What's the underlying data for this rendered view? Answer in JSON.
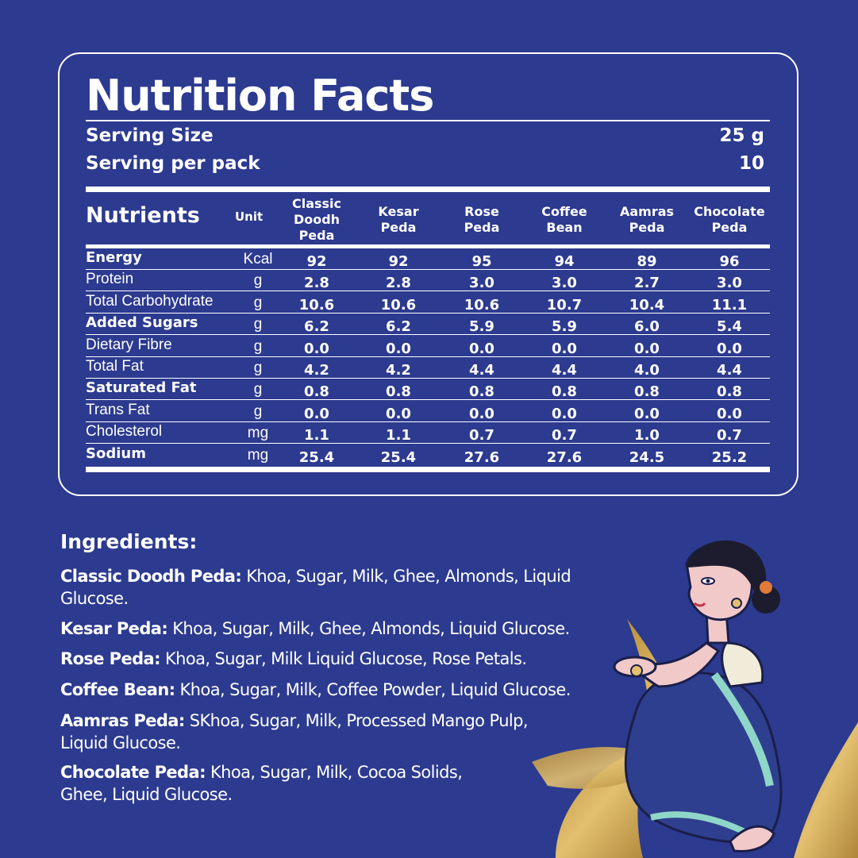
{
  "title": "Nutrition Facts",
  "serving": {
    "size_label": "Serving Size",
    "size_value": "25 g",
    "per_pack_label": "Serving per pack",
    "per_pack_value": "10"
  },
  "table": {
    "nutrients_header": "Nutrients",
    "unit_header": "Unit",
    "columns": [
      "Classic\nDoodh\nPeda",
      "Kesar\nPeda",
      "Rose\nPeda",
      "Coffee\nBean",
      "Aamras\nPeda",
      "Chocolate\nPeda"
    ],
    "rows": [
      {
        "name": "Energy",
        "unit": "Kcal",
        "values": [
          "92",
          "92",
          "95",
          "94",
          "89",
          "96"
        ]
      },
      {
        "name": "Protein",
        "unit": "g",
        "values": [
          "2.8",
          "2.8",
          "3.0",
          "3.0",
          "2.7",
          "3.0"
        ]
      },
      {
        "name": "Total Carbohydrate",
        "unit": "g",
        "values": [
          "10.6",
          "10.6",
          "10.6",
          "10.7",
          "10.4",
          "11.1"
        ]
      },
      {
        "name": "Added Sugars",
        "unit": "g",
        "values": [
          "6.2",
          "6.2",
          "5.9",
          "5.9",
          "6.0",
          "5.4"
        ]
      },
      {
        "name": "Dietary Fibre",
        "unit": "g",
        "values": [
          "0.0",
          "0.0",
          "0.0",
          "0.0",
          "0.0",
          "0.0"
        ]
      },
      {
        "name": "Total Fat",
        "unit": "g",
        "values": [
          "4.2",
          "4.2",
          "4.4",
          "4.4",
          "4.0",
          "4.4"
        ]
      },
      {
        "name": "Saturated Fat",
        "unit": "g",
        "values": [
          "0.8",
          "0.8",
          "0.8",
          "0.8",
          "0.8",
          "0.8"
        ]
      },
      {
        "name": "Trans Fat",
        "unit": "g",
        "values": [
          "0.0",
          "0.0",
          "0.0",
          "0.0",
          "0.0",
          "0.0"
        ]
      },
      {
        "name": "Cholesterol",
        "unit": "mg",
        "values": [
          "1.1",
          "1.1",
          "0.7",
          "0.7",
          "1.0",
          "0.7"
        ]
      },
      {
        "name": "Sodium",
        "unit": "mg",
        "values": [
          "25.4",
          "25.4",
          "27.6",
          "27.6",
          "24.5",
          "25.2"
        ]
      }
    ]
  },
  "ingredients": {
    "title": "Ingredients:",
    "items": [
      {
        "name": "Classic Doodh Peda:",
        "text": " Khoa, Sugar, Milk, Ghee, Almonds, Liquid Glucose."
      },
      {
        "name": "Kesar Peda:",
        "text": " Khoa, Sugar, Milk, Ghee, Almonds, Liquid Glucose."
      },
      {
        "name": "Rose Peda:",
        "text": " Khoa, Sugar, Milk Liquid Glucose, Rose Petals."
      },
      {
        "name": "Coffee Bean:",
        "text": " Khoa, Sugar, Milk, Coffee Powder, Liquid Glucose."
      },
      {
        "name": "Aamras Peda:",
        "text": " SKhoa, Sugar, Milk, Processed Mango Pulp, Liquid Glucose."
      },
      {
        "name": "Chocolate Peda:",
        "text": " Khoa, Sugar, Milk, Cocoa Solids, Ghee, Liquid Glucose."
      }
    ]
  },
  "illustration": {
    "icon": "seated-woman-illustration",
    "colors": {
      "background": "#2c3a8f",
      "gold": "#c9a24a",
      "saree": "#2f3f8f",
      "skin": "#f2c9c9"
    }
  }
}
